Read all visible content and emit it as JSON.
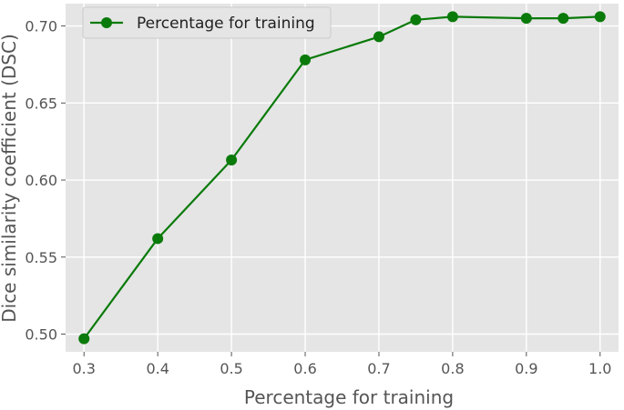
{
  "chart_data": {
    "type": "line",
    "title": "",
    "xlabel": "Percentage for training",
    "ylabel": "Dice similarity coefficient (DSC)",
    "xlim": [
      0.275,
      1.025
    ],
    "ylim": [
      0.4885,
      0.7145
    ],
    "x_ticks": [
      "0.3",
      "0.4",
      "0.5",
      "0.6",
      "0.7",
      "0.8",
      "0.9",
      "1.0"
    ],
    "y_ticks": [
      "0.50",
      "0.55",
      "0.60",
      "0.65",
      "0.70"
    ],
    "grid": true,
    "legend_position": "top-left",
    "series": [
      {
        "name": "Percentage for training",
        "color": "#0a7a0a",
        "marker": "circle",
        "x": [
          0.3,
          0.4,
          0.5,
          0.6,
          0.7,
          0.75,
          0.8,
          0.9,
          0.95,
          1.0
        ],
        "y": [
          0.497,
          0.562,
          0.613,
          0.678,
          0.693,
          0.704,
          0.706,
          0.705,
          0.705,
          0.706
        ]
      }
    ],
    "colors": {
      "plot_background": "#e5e5e5",
      "grid": "#ffffff",
      "text": "#555555"
    }
  }
}
